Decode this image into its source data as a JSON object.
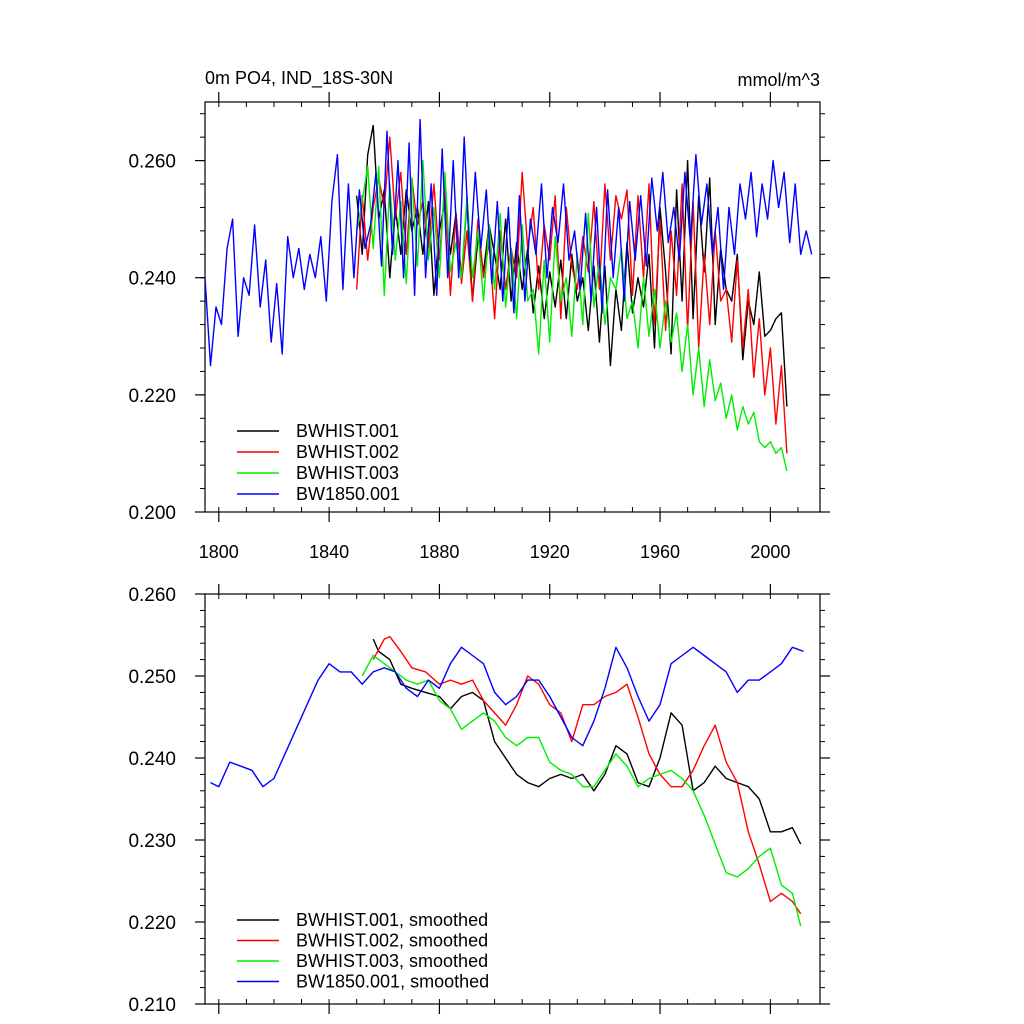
{
  "chart_data": [
    {
      "type": "line",
      "title": "0m PO4, IND_18S-30N",
      "units": "mmol/m^3",
      "xlim": [
        1795,
        2018
      ],
      "ylim": [
        0.2,
        0.27
      ],
      "xticks": [
        1800,
        1840,
        1880,
        1920,
        1960,
        2000
      ],
      "xtick_labels": [
        "1800",
        "1840",
        "1880",
        "1920",
        "1960",
        "2000"
      ],
      "yticks": [
        0.2,
        0.22,
        0.24,
        0.26
      ],
      "ytick_labels": [
        "0.200",
        "0.220",
        "0.240",
        "0.260"
      ],
      "legend_position": "lower-left",
      "series": [
        {
          "name": "BWHIST.001",
          "color": "#000000",
          "x_start": 1850,
          "x_step": 2,
          "values": [
            0.254,
            0.244,
            0.261,
            0.266,
            0.25,
            0.255,
            0.24,
            0.252,
            0.244,
            0.255,
            0.248,
            0.252,
            0.244,
            0.253,
            0.237,
            0.248,
            0.253,
            0.244,
            0.251,
            0.24,
            0.253,
            0.236,
            0.247,
            0.241,
            0.249,
            0.244,
            0.238,
            0.25,
            0.236,
            0.246,
            0.238,
            0.245,
            0.234,
            0.242,
            0.233,
            0.241,
            0.235,
            0.243,
            0.233,
            0.244,
            0.236,
            0.24,
            0.231,
            0.242,
            0.229,
            0.242,
            0.225,
            0.238,
            0.231,
            0.246,
            0.234,
            0.24,
            0.235,
            0.244,
            0.228,
            0.252,
            0.241,
            0.227,
            0.255,
            0.236,
            0.26,
            0.233,
            0.254,
            0.241,
            0.257,
            0.232,
            0.245,
            0.238,
            0.236,
            0.244,
            0.226,
            0.236,
            0.232,
            0.241,
            0.23,
            0.231,
            0.233,
            0.234,
            0.218
          ]
        },
        {
          "name": "BWHIST.002",
          "color": "#ff0000",
          "x_start": 1850,
          "x_step": 2,
          "values": [
            0.238,
            0.254,
            0.243,
            0.252,
            0.257,
            0.252,
            0.264,
            0.25,
            0.258,
            0.244,
            0.257,
            0.249,
            0.253,
            0.245,
            0.256,
            0.243,
            0.256,
            0.237,
            0.251,
            0.239,
            0.248,
            0.236,
            0.25,
            0.24,
            0.246,
            0.233,
            0.248,
            0.238,
            0.245,
            0.24,
            0.258,
            0.245,
            0.252,
            0.238,
            0.249,
            0.243,
            0.254,
            0.233,
            0.252,
            0.242,
            0.238,
            0.247,
            0.241,
            0.253,
            0.238,
            0.256,
            0.243,
            0.254,
            0.25,
            0.255,
            0.237,
            0.254,
            0.24,
            0.256,
            0.232,
            0.25,
            0.231,
            0.248,
            0.237,
            0.256,
            0.231,
            0.253,
            0.228,
            0.244,
            0.232,
            0.248,
            0.236,
            0.238,
            0.229,
            0.243,
            0.228,
            0.238,
            0.223,
            0.233,
            0.22,
            0.228,
            0.215,
            0.225,
            0.21
          ]
        },
        {
          "name": "BWHIST.003",
          "color": "#00ee00",
          "x_start": 1850,
          "x_step": 2,
          "values": [
            0.248,
            0.253,
            0.259,
            0.245,
            0.259,
            0.237,
            0.256,
            0.243,
            0.253,
            0.239,
            0.257,
            0.242,
            0.26,
            0.243,
            0.252,
            0.24,
            0.258,
            0.241,
            0.246,
            0.24,
            0.254,
            0.24,
            0.248,
            0.236,
            0.249,
            0.238,
            0.251,
            0.235,
            0.245,
            0.233,
            0.249,
            0.236,
            0.238,
            0.227,
            0.243,
            0.229,
            0.247,
            0.236,
            0.24,
            0.23,
            0.244,
            0.232,
            0.251,
            0.235,
            0.243,
            0.232,
            0.24,
            0.238,
            0.245,
            0.233,
            0.236,
            0.228,
            0.24,
            0.23,
            0.238,
            0.228,
            0.236,
            0.229,
            0.234,
            0.224,
            0.232,
            0.22,
            0.228,
            0.218,
            0.226,
            0.219,
            0.222,
            0.216,
            0.22,
            0.214,
            0.218,
            0.215,
            0.217,
            0.212,
            0.211,
            0.212,
            0.21,
            0.211,
            0.207
          ]
        },
        {
          "name": "BW1850.001",
          "color": "#0000ff",
          "x_start": 1795,
          "x_step": 2,
          "values": [
            0.24,
            0.225,
            0.235,
            0.232,
            0.245,
            0.25,
            0.23,
            0.24,
            0.237,
            0.249,
            0.235,
            0.243,
            0.229,
            0.239,
            0.227,
            0.247,
            0.24,
            0.245,
            0.238,
            0.244,
            0.24,
            0.247,
            0.236,
            0.253,
            0.261,
            0.238,
            0.256,
            0.24,
            0.255,
            0.245,
            0.249,
            0.258,
            0.242,
            0.265,
            0.244,
            0.26,
            0.24,
            0.263,
            0.237,
            0.267,
            0.24,
            0.256,
            0.237,
            0.262,
            0.24,
            0.26,
            0.24,
            0.264,
            0.243,
            0.258,
            0.245,
            0.255,
            0.239,
            0.253,
            0.236,
            0.252,
            0.234,
            0.254,
            0.236,
            0.25,
            0.244,
            0.256,
            0.24,
            0.252,
            0.246,
            0.256,
            0.243,
            0.248,
            0.238,
            0.251,
            0.236,
            0.252,
            0.234,
            0.255,
            0.24,
            0.252,
            0.236,
            0.253,
            0.243,
            0.254,
            0.242,
            0.257,
            0.248,
            0.258,
            0.246,
            0.252,
            0.243,
            0.258,
            0.246,
            0.261,
            0.249,
            0.256,
            0.244,
            0.252,
            0.238,
            0.252,
            0.244,
            0.256,
            0.25,
            0.258,
            0.247,
            0.256,
            0.25,
            0.26,
            0.252,
            0.258,
            0.246,
            0.256,
            0.244,
            0.248,
            0.244
          ]
        }
      ]
    },
    {
      "type": "line",
      "xlim": [
        1795,
        2018
      ],
      "ylim": [
        0.21,
        0.26
      ],
      "xticks": [
        1800,
        1840,
        1880,
        1920,
        1960,
        2000
      ],
      "yticks": [
        0.21,
        0.22,
        0.23,
        0.24,
        0.25,
        0.26
      ],
      "ytick_labels": [
        "0.210",
        "0.220",
        "0.230",
        "0.240",
        "0.250",
        "0.260"
      ],
      "legend_position": "lower-left",
      "series": [
        {
          "name": "BWHIST.001, smoothed",
          "color": "#000000",
          "x": [
            1856,
            1858,
            1862,
            1866,
            1870,
            1875,
            1880,
            1884,
            1888,
            1892,
            1896,
            1900,
            1904,
            1908,
            1912,
            1916,
            1920,
            1924,
            1928,
            1932,
            1936,
            1940,
            1944,
            1948,
            1952,
            1956,
            1960,
            1964,
            1968,
            1972,
            1976,
            1980,
            1984,
            1988,
            1992,
            1996,
            2000,
            2004,
            2008,
            2011
          ],
          "values": [
            0.2545,
            0.253,
            0.252,
            0.249,
            0.2485,
            0.248,
            0.2475,
            0.246,
            0.2475,
            0.248,
            0.247,
            0.242,
            0.24,
            0.238,
            0.237,
            0.2365,
            0.2375,
            0.238,
            0.2375,
            0.238,
            0.236,
            0.238,
            0.2415,
            0.2405,
            0.237,
            0.2365,
            0.24,
            0.2455,
            0.244,
            0.236,
            0.237,
            0.239,
            0.2375,
            0.237,
            0.2365,
            0.235,
            0.231,
            0.231,
            0.2315,
            0.2295
          ]
        },
        {
          "name": "BWHIST.002, smoothed",
          "color": "#ff0000",
          "x": [
            1856,
            1860,
            1862,
            1866,
            1870,
            1875,
            1880,
            1884,
            1888,
            1892,
            1896,
            1900,
            1904,
            1908,
            1912,
            1916,
            1920,
            1924,
            1928,
            1932,
            1936,
            1940,
            1944,
            1948,
            1952,
            1956,
            1960,
            1964,
            1968,
            1972,
            1976,
            1980,
            1984,
            1988,
            1992,
            1996,
            2000,
            2004,
            2008,
            2011
          ],
          "values": [
            0.252,
            0.2545,
            0.2548,
            0.253,
            0.251,
            0.2505,
            0.249,
            0.2495,
            0.249,
            0.2495,
            0.247,
            0.2455,
            0.244,
            0.2465,
            0.25,
            0.249,
            0.2465,
            0.2455,
            0.242,
            0.2465,
            0.2465,
            0.2475,
            0.248,
            0.249,
            0.245,
            0.2405,
            0.238,
            0.2365,
            0.2365,
            0.2385,
            0.2415,
            0.244,
            0.2395,
            0.237,
            0.231,
            0.227,
            0.2225,
            0.2235,
            0.2225,
            0.221
          ]
        },
        {
          "name": "BWHIST.003, smoothed",
          "color": "#00ee00",
          "x": [
            1852,
            1856,
            1860,
            1864,
            1868,
            1872,
            1876,
            1880,
            1884,
            1888,
            1892,
            1896,
            1900,
            1904,
            1908,
            1912,
            1916,
            1920,
            1924,
            1928,
            1932,
            1936,
            1940,
            1944,
            1948,
            1952,
            1956,
            1960,
            1964,
            1968,
            1972,
            1976,
            1980,
            1984,
            1988,
            1992,
            1996,
            2000,
            2004,
            2008,
            2011
          ],
          "values": [
            0.25,
            0.2525,
            0.2515,
            0.2505,
            0.2495,
            0.249,
            0.2495,
            0.247,
            0.246,
            0.2435,
            0.2445,
            0.2455,
            0.2445,
            0.2425,
            0.2415,
            0.2425,
            0.2425,
            0.2395,
            0.2385,
            0.238,
            0.2365,
            0.2365,
            0.2385,
            0.2405,
            0.239,
            0.2365,
            0.2375,
            0.238,
            0.2385,
            0.2375,
            0.236,
            0.233,
            0.2295,
            0.226,
            0.2255,
            0.2265,
            0.228,
            0.229,
            0.2245,
            0.2235,
            0.2195
          ]
        },
        {
          "name": "BW1850.001, smoothed",
          "color": "#0000ff",
          "x": [
            1797,
            1800,
            1804,
            1808,
            1812,
            1816,
            1820,
            1824,
            1828,
            1832,
            1836,
            1840,
            1844,
            1848,
            1852,
            1856,
            1860,
            1864,
            1868,
            1872,
            1876,
            1880,
            1884,
            1888,
            1892,
            1896,
            1900,
            1904,
            1908,
            1912,
            1916,
            1920,
            1924,
            1928,
            1932,
            1936,
            1940,
            1944,
            1948,
            1952,
            1956,
            1960,
            1964,
            1968,
            1972,
            1976,
            1980,
            1984,
            1988,
            1992,
            1996,
            2000,
            2004,
            2008,
            2012
          ],
          "values": [
            0.237,
            0.2365,
            0.2395,
            0.239,
            0.2385,
            0.2365,
            0.2375,
            0.2405,
            0.2435,
            0.2465,
            0.2495,
            0.2515,
            0.2505,
            0.2505,
            0.249,
            0.2505,
            0.251,
            0.2505,
            0.2485,
            0.2475,
            0.2495,
            0.2485,
            0.2515,
            0.2535,
            0.2525,
            0.2515,
            0.248,
            0.2465,
            0.2475,
            0.2495,
            0.2495,
            0.2475,
            0.245,
            0.2425,
            0.2415,
            0.2445,
            0.2485,
            0.2535,
            0.251,
            0.2475,
            0.2445,
            0.2465,
            0.2515,
            0.2525,
            0.2535,
            0.2525,
            0.2515,
            0.2505,
            0.248,
            0.2495,
            0.2495,
            0.2505,
            0.2515,
            0.2535,
            0.253
          ]
        }
      ]
    }
  ]
}
